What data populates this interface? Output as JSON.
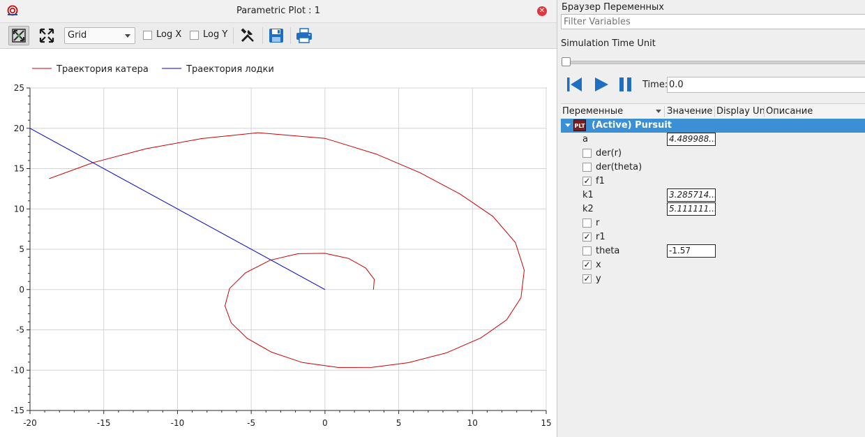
{
  "plot_window": {
    "title": "Parametric Plot : 1",
    "grid_select": "Grid",
    "log_x_label": "Log X",
    "log_y_label": "Log Y"
  },
  "chart_data": {
    "type": "line",
    "title": "",
    "xlabel": "",
    "ylabel": "",
    "xlim": [
      -20,
      15
    ],
    "ylim": [
      -15,
      25
    ],
    "x_ticks": [
      -20,
      -15,
      -10,
      -5,
      0,
      5,
      10,
      15
    ],
    "y_ticks": [
      -15,
      -10,
      -5,
      0,
      5,
      10,
      15,
      20,
      25
    ],
    "grid": true,
    "legend_position": "top-left",
    "series": [
      {
        "name": "Траектория катера",
        "color": "#cc0000",
        "points": [
          [
            3.29,
            0.0
          ],
          [
            3.34,
            1.26
          ],
          [
            2.76,
            2.67
          ],
          [
            1.6,
            3.86
          ],
          [
            0.0,
            4.49
          ],
          [
            -1.82,
            4.45
          ],
          [
            -3.71,
            3.64
          ],
          [
            -5.39,
            2.07
          ],
          [
            -6.47,
            0.13
          ],
          [
            -6.78,
            -2.03
          ],
          [
            -6.36,
            -4.13
          ],
          [
            -5.27,
            -6.06
          ],
          [
            -3.63,
            -7.76
          ],
          [
            -1.53,
            -9.05
          ],
          [
            0.89,
            -9.67
          ],
          [
            3.19,
            -9.66
          ],
          [
            5.66,
            -9.07
          ],
          [
            8.24,
            -7.85
          ],
          [
            10.58,
            -5.99
          ],
          [
            12.32,
            -3.75
          ],
          [
            13.29,
            -1.02
          ],
          [
            13.51,
            2.4
          ],
          [
            12.91,
            5.83
          ],
          [
            11.38,
            9.08
          ],
          [
            9.18,
            11.82
          ],
          [
            6.46,
            14.47
          ],
          [
            3.46,
            16.81
          ],
          [
            0.0,
            18.75
          ],
          [
            -4.54,
            19.45
          ],
          [
            -8.36,
            18.72
          ],
          [
            -12.12,
            17.47
          ],
          [
            -15.7,
            15.75
          ],
          [
            -18.7,
            13.75
          ]
        ]
      },
      {
        "name": "Траектория лодки",
        "color": "#0000cc",
        "points": [
          [
            0.0,
            0.0
          ],
          [
            -20.0,
            20.0
          ]
        ]
      }
    ]
  },
  "variables_panel": {
    "title": "Браузер Переменных",
    "filter_placeholder": "Filter Variables",
    "sim_time_unit": "Simulation Time Unit",
    "time_label": "Time:",
    "time_value": "0.0",
    "columns": [
      "Переменные",
      "Значение",
      "Display Un",
      "Описание"
    ],
    "root_label": "(Active) Pursuit",
    "root_icon_text": "PLT",
    "rows": [
      {
        "name": "a",
        "has_check": false,
        "checked": false,
        "value": "4.489988..."
      },
      {
        "name": "der(r)",
        "has_check": true,
        "checked": false,
        "value": ""
      },
      {
        "name": "der(theta)",
        "has_check": true,
        "checked": false,
        "value": ""
      },
      {
        "name": "f1",
        "has_check": true,
        "checked": true,
        "value": ""
      },
      {
        "name": "k1",
        "has_check": false,
        "checked": false,
        "value": "3.285714..."
      },
      {
        "name": "k2",
        "has_check": false,
        "checked": false,
        "value": "5.111111..."
      },
      {
        "name": "r",
        "has_check": true,
        "checked": false,
        "value": ""
      },
      {
        "name": "r1",
        "has_check": true,
        "checked": true,
        "value": ""
      },
      {
        "name": "theta",
        "has_check": true,
        "checked": false,
        "value": "-1.57"
      },
      {
        "name": "x",
        "has_check": true,
        "checked": true,
        "value": ""
      },
      {
        "name": "y",
        "has_check": true,
        "checked": true,
        "value": ""
      }
    ]
  }
}
